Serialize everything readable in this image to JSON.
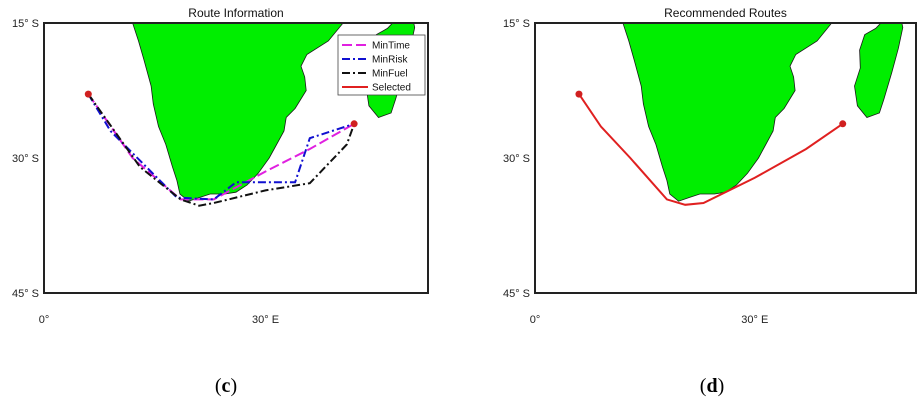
{
  "panels": [
    {
      "id": "c",
      "title": "Route Information",
      "caption_open": "(",
      "caption_letter": "c",
      "caption_close": ")",
      "lat_ticks": [
        "15° S",
        "30° S",
        "45° S"
      ],
      "lon_ticks": [
        "0°",
        "30° E"
      ],
      "legend": [
        {
          "label": "MinTime",
          "color": "#e020e0",
          "dash": "10,4"
        },
        {
          "label": "MinRisk",
          "color": "#1010d0",
          "dash": "8,3,2,3"
        },
        {
          "label": "MinFuel",
          "color": "#111111",
          "dash": "8,3,2,3"
        },
        {
          "label": "Selected",
          "color": "#e02020",
          "dash": ""
        }
      ],
      "routes": [
        {
          "name": "MinTime",
          "color": "#e020e0",
          "dash": "10,4",
          "points": [
            [
              6,
              -22.9
            ],
            [
              12,
              -30
            ],
            [
              18.5,
              -34.6
            ],
            [
              23,
              -34.6
            ],
            [
              30,
              -31.5
            ],
            [
              36,
              -29
            ],
            [
              42,
              -26.2
            ]
          ]
        },
        {
          "name": "MinRisk",
          "color": "#1010d0",
          "dash": "8,3,2,3",
          "points": [
            [
              6,
              -22.9
            ],
            [
              9,
              -27
            ],
            [
              18,
              -34.4
            ],
            [
              23,
              -34.6
            ],
            [
              26,
              -32.7
            ],
            [
              34,
              -32.7
            ],
            [
              36,
              -27.8
            ],
            [
              42,
              -26.2
            ]
          ]
        },
        {
          "name": "MinFuel",
          "color": "#111111",
          "dash": "8,3,2,3",
          "points": [
            [
              6,
              -22.9
            ],
            [
              13,
              -31
            ],
            [
              18.5,
              -34.6
            ],
            [
              21,
              -35.3
            ],
            [
              23,
              -35
            ],
            [
              30,
              -33.6
            ],
            [
              36,
              -32.8
            ],
            [
              41,
              -28.5
            ],
            [
              42,
              -26.2
            ]
          ]
        }
      ],
      "endpoints": [
        [
          6,
          -22.9
        ],
        [
          42,
          -26.2
        ]
      ]
    },
    {
      "id": "d",
      "title": "Recommended  Routes",
      "caption_open": "(",
      "caption_letter": "d",
      "caption_close": ")",
      "lat_ticks": [
        "15° S",
        "30° S",
        "45° S"
      ],
      "lon_ticks": [
        "0°",
        "30° E"
      ],
      "routes": [
        {
          "name": "Selected",
          "color": "#e02020",
          "dash": "",
          "points": [
            [
              6,
              -22.9
            ],
            [
              9,
              -26.5
            ],
            [
              13,
              -30
            ],
            [
              18,
              -34.6
            ],
            [
              20.5,
              -35.2
            ],
            [
              23,
              -35
            ],
            [
              30,
              -32.2
            ],
            [
              37,
              -29
            ],
            [
              42,
              -26.2
            ]
          ]
        }
      ],
      "endpoints": [
        [
          6,
          -22.9
        ],
        [
          42,
          -26.2
        ]
      ]
    }
  ],
  "colors": {
    "land": "#00ee00",
    "frame": "#222222",
    "endpoint": "#d02020"
  }
}
